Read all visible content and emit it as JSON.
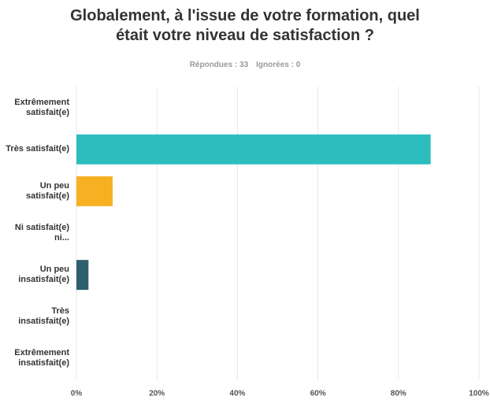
{
  "chart_data": {
    "type": "barh",
    "title": "Globalement, à l'issue de votre formation, quel était votre niveau de satisfaction ?",
    "responses": "Répondues : 33",
    "ignored": "Ignorées : 0",
    "categories": [
      "Extrêmement satisfait(e)",
      "Très satisfait(e)",
      "Un peu satisfait(e)",
      "Ni satisfait(e) ni...",
      "Un peu insatisfait(e)",
      "Très insatisfait(e)",
      "Extrêmement insatisfait(e)"
    ],
    "values": [
      0,
      88,
      9,
      0,
      3,
      0,
      0
    ],
    "colors": [
      "#3dbfbf",
      "#2ebdbd",
      "#f8b023",
      "#8dc63f",
      "#2d5f6e",
      "#d25b3a",
      "#7a6fa6"
    ],
    "xlim": [
      0,
      100
    ],
    "xticks": [
      {
        "value": 0,
        "label": "0%"
      },
      {
        "value": 20,
        "label": "20%"
      },
      {
        "value": 40,
        "label": "40%"
      },
      {
        "value": 60,
        "label": "60%"
      },
      {
        "value": 80,
        "label": "80%"
      },
      {
        "value": 100,
        "label": "100%"
      }
    ],
    "grid": true
  }
}
